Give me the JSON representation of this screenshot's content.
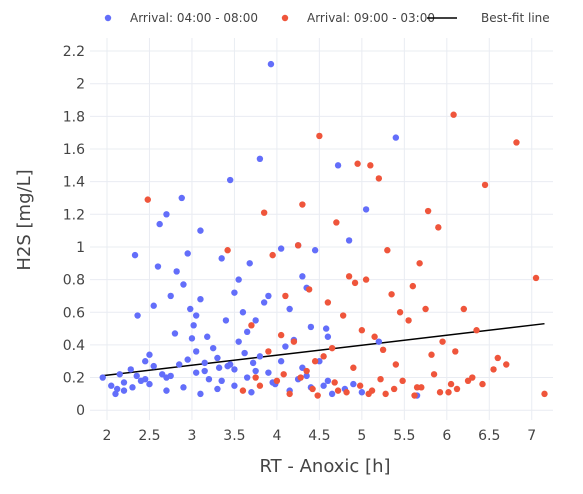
{
  "chart_data": {
    "type": "scatter",
    "xlabel": "RT - Anoxic [h]",
    "ylabel": "H2S [mg/L]",
    "xlim": [
      1.8,
      7.25
    ],
    "ylim": [
      -0.06,
      2.28
    ],
    "xticks": [
      2,
      2.5,
      3,
      3.5,
      4,
      4.5,
      5,
      5.5,
      6,
      6.5,
      7
    ],
    "xtick_labels": [
      "2",
      "2.5",
      "3",
      "3.5",
      "4",
      "4.5",
      "5",
      "5.5",
      "6",
      "6.5",
      "7"
    ],
    "yticks": [
      0,
      0.2,
      0.4,
      0.6,
      0.8,
      1,
      1.2,
      1.4,
      1.6,
      1.8,
      2,
      2.2
    ],
    "ytick_labels": [
      "0",
      "0.2",
      "0.4",
      "0.6",
      "0.8",
      "1",
      "1.2",
      "1.4",
      "1.6",
      "1.8",
      "2",
      "2.2"
    ],
    "grid": true,
    "legend_position": "top",
    "series": [
      {
        "name": "Arrival: 04:00 - 08:00",
        "color": "#636efa",
        "x": [
          1.95,
          2.05,
          2.12,
          2.2,
          2.28,
          2.33,
          2.36,
          2.45,
          2.55,
          2.62,
          2.7,
          2.75,
          2.82,
          2.88,
          2.95,
          3.02,
          3.05,
          3.1,
          3.18,
          3.3,
          3.45,
          3.5,
          3.55,
          3.6,
          3.68,
          3.75,
          3.8,
          3.93,
          4.05,
          4.15,
          4.25,
          4.35,
          4.45,
          4.58,
          4.72,
          4.85,
          5.05,
          5.2,
          5.4,
          5.65,
          2.6,
          2.8,
          3.25,
          3.4,
          3.9,
          4.3,
          4.6,
          2.5,
          2.98,
          3.65,
          3.85,
          4.1,
          4.4,
          3.35,
          3.15,
          2.9,
          3.05,
          3.72,
          4.2,
          4.5,
          3.1,
          3.32,
          3.55,
          2.65,
          3.8,
          2.35,
          2.85,
          3.0,
          3.2,
          3.42,
          3.62,
          3.9,
          4.05,
          4.3,
          4.6,
          4.9,
          2.2,
          2.4,
          2.7,
          3.5,
          2.1,
          2.3,
          2.5,
          2.7,
          2.9,
          3.1,
          3.3,
          3.5,
          3.7,
          3.95,
          4.15,
          4.4,
          4.65,
          4.8,
          5.0,
          2.15,
          2.45,
          2.75,
          3.05,
          3.35,
          3.65,
          3.98,
          4.25,
          4.55,
          2.55,
          3.15,
          3.75,
          4.35,
          2.95,
          3.45
        ],
        "y": [
          0.2,
          0.15,
          0.13,
          0.17,
          0.25,
          0.95,
          0.58,
          0.3,
          0.64,
          1.14,
          1.2,
          0.7,
          0.85,
          1.3,
          0.96,
          0.52,
          0.58,
          1.1,
          0.45,
          0.32,
          1.41,
          0.72,
          0.8,
          0.6,
          0.9,
          0.55,
          1.54,
          2.12,
          0.99,
          0.62,
          1.01,
          0.75,
          0.98,
          0.5,
          1.5,
          1.04,
          1.23,
          0.42,
          1.67,
          0.09,
          0.88,
          0.47,
          0.38,
          0.55,
          0.7,
          0.82,
          0.45,
          0.34,
          0.62,
          0.48,
          0.66,
          0.39,
          0.51,
          0.93,
          0.24,
          0.77,
          0.36,
          0.29,
          0.43,
          0.3,
          0.68,
          0.26,
          0.42,
          0.22,
          0.33,
          0.21,
          0.28,
          0.44,
          0.19,
          0.27,
          0.35,
          0.23,
          0.3,
          0.26,
          0.18,
          0.16,
          0.12,
          0.18,
          0.2,
          0.25,
          0.1,
          0.14,
          0.16,
          0.12,
          0.14,
          0.1,
          0.13,
          0.15,
          0.11,
          0.17,
          0.12,
          0.14,
          0.1,
          0.13,
          0.11,
          0.22,
          0.19,
          0.21,
          0.23,
          0.18,
          0.2,
          0.16,
          0.19,
          0.15,
          0.27,
          0.29,
          0.24,
          0.21,
          0.31,
          0.28
        ]
      },
      {
        "name": "Arrival: 09:00 - 03:00",
        "color": "#ef553b",
        "x": [
          2.48,
          3.42,
          3.85,
          4.3,
          4.5,
          4.95,
          5.1,
          5.2,
          5.3,
          5.68,
          5.78,
          5.9,
          6.08,
          6.45,
          6.82,
          7.05,
          7.15,
          3.95,
          4.1,
          4.25,
          4.7,
          4.85,
          5.45,
          5.6,
          6.2,
          6.7,
          3.7,
          4.05,
          4.38,
          4.6,
          4.78,
          4.92,
          5.05,
          5.25,
          5.35,
          5.55,
          5.75,
          5.95,
          6.1,
          6.35,
          6.55,
          4.45,
          5.15,
          5.82,
          6.25,
          6.6,
          3.9,
          4.2,
          4.65,
          5.0,
          5.4,
          5.85,
          6.3,
          4.35,
          4.55,
          4.9,
          5.22,
          5.7,
          6.05,
          3.6,
          3.8,
          4.0,
          4.15,
          4.28,
          4.42,
          4.68,
          4.82,
          4.98,
          5.12,
          5.28,
          5.48,
          5.65,
          5.92,
          6.12,
          6.42,
          3.75,
          4.08,
          4.48,
          4.72,
          5.08,
          5.38,
          5.62,
          6.02
        ],
        "y": [
          1.29,
          0.98,
          1.21,
          1.26,
          1.68,
          1.51,
          1.5,
          1.42,
          0.98,
          0.9,
          1.22,
          1.12,
          1.81,
          1.38,
          1.64,
          0.81,
          0.1,
          0.95,
          0.7,
          1.01,
          1.15,
          0.82,
          0.6,
          0.76,
          0.62,
          0.28,
          0.52,
          0.46,
          0.74,
          0.66,
          0.58,
          0.78,
          0.8,
          0.37,
          0.71,
          0.55,
          0.62,
          0.42,
          0.36,
          0.49,
          0.25,
          0.3,
          0.45,
          0.34,
          0.18,
          0.32,
          0.36,
          0.42,
          0.38,
          0.49,
          0.28,
          0.22,
          0.2,
          0.24,
          0.33,
          0.26,
          0.19,
          0.14,
          0.16,
          0.12,
          0.15,
          0.18,
          0.1,
          0.2,
          0.13,
          0.17,
          0.11,
          0.15,
          0.12,
          0.1,
          0.18,
          0.14,
          0.11,
          0.13,
          0.16,
          0.2,
          0.22,
          0.09,
          0.12,
          0.1,
          0.13,
          0.09,
          0.11
        ]
      },
      {
        "name": "Best-fit line",
        "color": "#000000",
        "x": [
          1.93,
          7.15
        ],
        "y": [
          0.21,
          0.53
        ]
      }
    ]
  }
}
